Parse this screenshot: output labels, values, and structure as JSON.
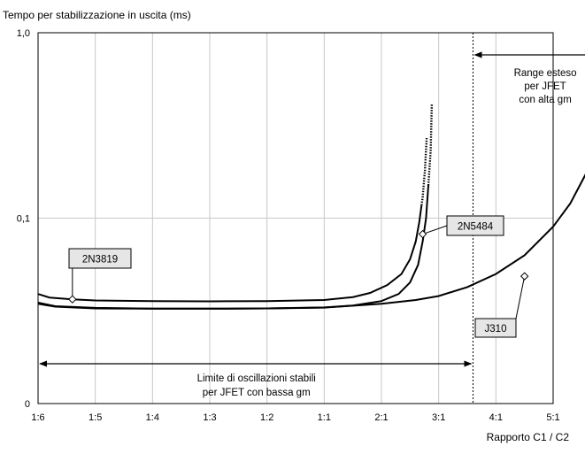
{
  "chart_data": {
    "type": "line",
    "title": "Tempo per stabilizzazione in uscita  (ms)",
    "xlabel": "Rapporto C1 / C2",
    "ylabel": "",
    "x_categories": [
      "1:6",
      "1:5",
      "1:4",
      "1:3",
      "1:2",
      "1:1",
      "2:1",
      "3:1",
      "4:1",
      "5:1"
    ],
    "y_scale": "log",
    "y_ticks": [
      {
        "value": 1.0,
        "label": "1,0"
      },
      {
        "value": 0.1,
        "label": "0,1"
      },
      {
        "value": 0.01,
        "label": "0"
      }
    ],
    "ylim": [
      0.01,
      1.0
    ],
    "grid": true,
    "series": [
      {
        "name": "2N3819",
        "points": [
          [
            0.0,
            0.039
          ],
          [
            0.2,
            0.0373
          ],
          [
            0.6,
            0.0365
          ],
          [
            1.0,
            0.036
          ],
          [
            2.0,
            0.0357
          ],
          [
            3.0,
            0.0356
          ],
          [
            4.0,
            0.0357
          ],
          [
            5.0,
            0.0362
          ],
          [
            5.5,
            0.0375
          ],
          [
            5.8,
            0.0395
          ],
          [
            6.1,
            0.0435
          ],
          [
            6.35,
            0.05
          ],
          [
            6.5,
            0.06
          ],
          [
            6.6,
            0.075
          ],
          [
            6.66,
            0.095
          ],
          [
            6.72,
            0.13
          ],
          [
            6.76,
            0.18
          ],
          [
            6.79,
            0.27
          ]
        ],
        "dotted_from_x": 6.7
      },
      {
        "name": "2N5484",
        "points": [
          [
            0.0,
            0.035
          ],
          [
            0.3,
            0.0335
          ],
          [
            1.0,
            0.0328
          ],
          [
            2.0,
            0.0325
          ],
          [
            3.0,
            0.0325
          ],
          [
            4.0,
            0.0326
          ],
          [
            5.0,
            0.033
          ],
          [
            5.5,
            0.0338
          ],
          [
            6.0,
            0.0357
          ],
          [
            6.3,
            0.039
          ],
          [
            6.5,
            0.045
          ],
          [
            6.64,
            0.056
          ],
          [
            6.72,
            0.075
          ],
          [
            6.78,
            0.1
          ],
          [
            6.82,
            0.15
          ],
          [
            6.86,
            0.23
          ],
          [
            6.88,
            0.41
          ]
        ],
        "dotted_from_x": 6.82
      },
      {
        "name": "J310",
        "points": [
          [
            0.0,
            0.0345
          ],
          [
            0.3,
            0.0333
          ],
          [
            1.0,
            0.0326
          ],
          [
            2.0,
            0.0325
          ],
          [
            3.0,
            0.0325
          ],
          [
            4.0,
            0.0326
          ],
          [
            5.0,
            0.0329
          ],
          [
            6.0,
            0.0345
          ],
          [
            6.6,
            0.0362
          ],
          [
            7.0,
            0.038
          ],
          [
            7.5,
            0.0425
          ],
          [
            8.0,
            0.05
          ],
          [
            8.5,
            0.063
          ],
          [
            9.0,
            0.09
          ],
          [
            9.3,
            0.12
          ],
          [
            9.6,
            0.18
          ],
          [
            9.85,
            0.3
          ],
          [
            10.0,
            0.49
          ]
        ],
        "dotted_from_x": null
      }
    ],
    "callouts": [
      {
        "text": "2N3819",
        "series": "2N3819",
        "at": [
          0.6,
          0.0365
        ]
      },
      {
        "text": "2N5484",
        "series": "2N5484",
        "at": [
          6.72,
          0.082
        ]
      },
      {
        "text": "J310",
        "series": "J310",
        "at": [
          8.5,
          0.0486
        ]
      }
    ],
    "reference_line_x": 7.6,
    "ranges": [
      {
        "from": 0.0,
        "to": 7.6,
        "lines": [
          "Limite di oscillazioni stabili",
          "per JFET con bassa gm"
        ],
        "position": "bottom"
      },
      {
        "from": 7.6,
        "to": 10.0,
        "lines": [
          "Range esteso",
          "per JFET",
          "con alta gm"
        ],
        "position": "top"
      }
    ]
  }
}
